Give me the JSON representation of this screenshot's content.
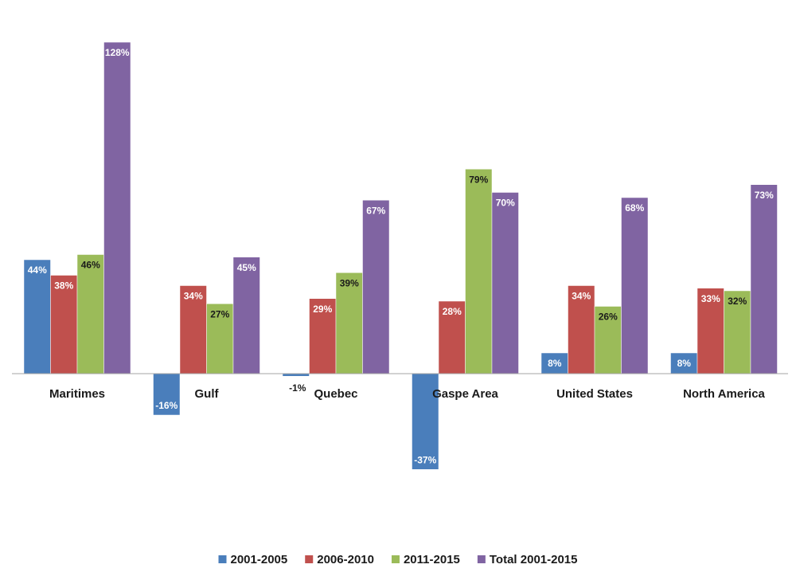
{
  "chart_data": {
    "type": "bar",
    "title": "",
    "xlabel": "",
    "ylabel": "",
    "ylim": [
      -37,
      128
    ],
    "grid": false,
    "legend_position": "bottom",
    "categories": [
      "Maritimes",
      "Gulf",
      "Quebec",
      "Gaspe Area",
      "United States",
      "North America"
    ],
    "series": [
      {
        "name": "2001-2005",
        "color": "#4a7ebb",
        "values": [
          44,
          -16,
          -1,
          -37,
          8,
          8
        ],
        "labels": [
          "44%",
          "-16%",
          "-1%",
          "-37%",
          "8%",
          "8%"
        ]
      },
      {
        "name": "2006-2010",
        "color": "#c0504d",
        "values": [
          38,
          34,
          29,
          28,
          34,
          33
        ],
        "labels": [
          "38%",
          "34%",
          "29%",
          "28%",
          "34%",
          "33%"
        ]
      },
      {
        "name": "2011-2015",
        "color": "#9bbb59",
        "values": [
          46,
          27,
          39,
          79,
          26,
          32
        ],
        "labels": [
          "46%",
          "27%",
          "39%",
          "79%",
          "26%",
          "32%"
        ]
      },
      {
        "name": "Total 2001-2015",
        "color": "#8064a2",
        "values": [
          128,
          45,
          67,
          70,
          68,
          73
        ],
        "labels": [
          "128%",
          "45%",
          "67%",
          "70%",
          "68%",
          "73%"
        ]
      }
    ],
    "label_colors": [
      "#ffffff",
      "#ffffff",
      "#1a1a1a",
      "#ffffff"
    ]
  }
}
